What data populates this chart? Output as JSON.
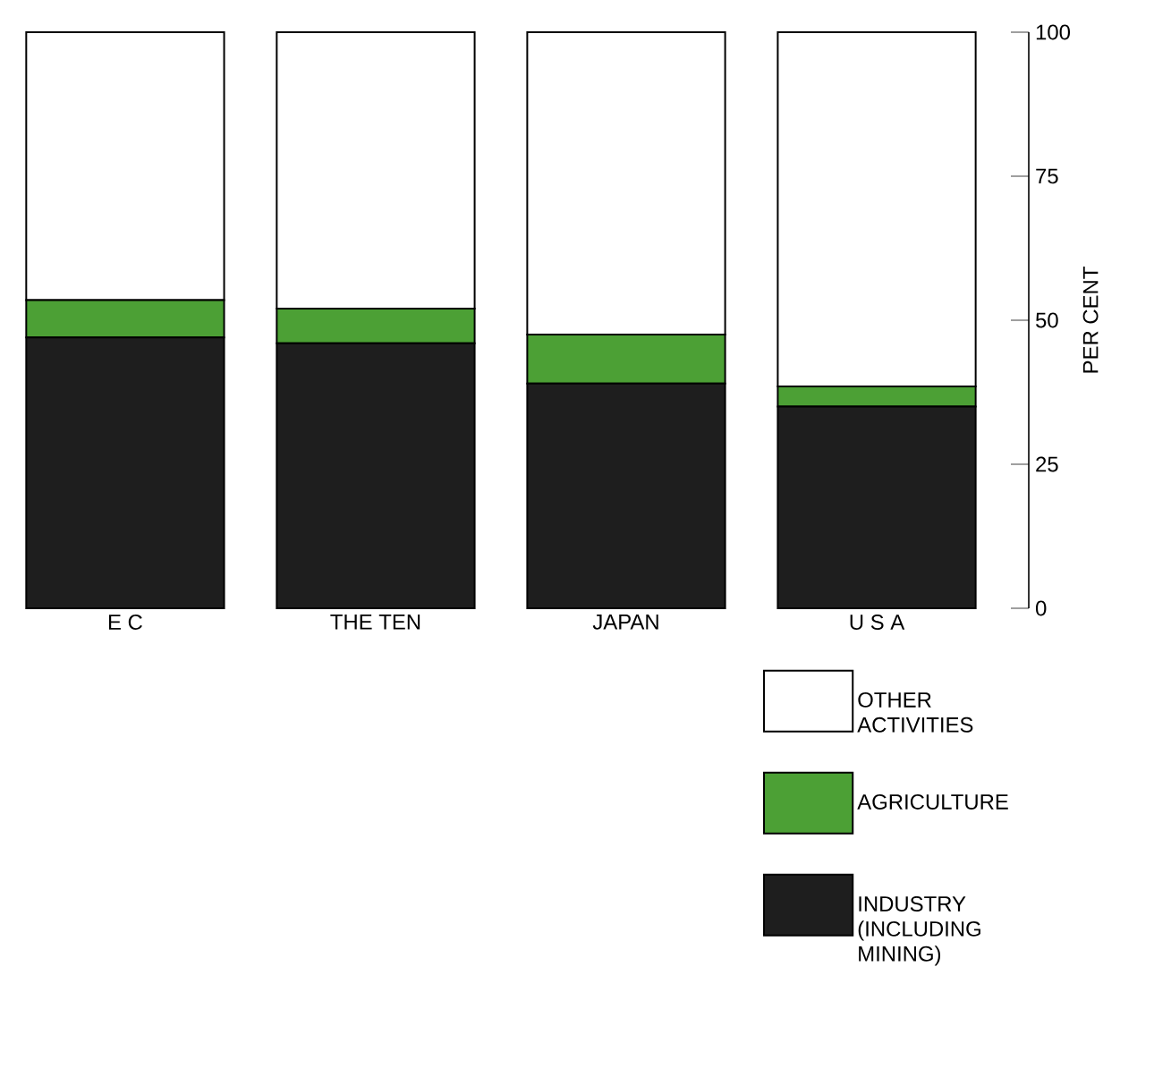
{
  "chart_data": {
    "type": "bar",
    "stacked": true,
    "ylabel": "PER CENT",
    "categories": [
      "E C",
      "THE TEN",
      "JAPAN",
      "U S A"
    ],
    "series": [
      {
        "name": "INDUSTRY (INCLUDING MINING)",
        "color": "#1e1e1e",
        "values": [
          47,
          46,
          39,
          35
        ]
      },
      {
        "name": "AGRICULTURE",
        "color": "#4ca035",
        "values": [
          6.5,
          6,
          8.5,
          3.5
        ]
      },
      {
        "name": "OTHER ACTIVITIES",
        "color": "#ffffff",
        "values": [
          46.5,
          48,
          52.5,
          61.5
        ]
      }
    ],
    "ylim": [
      0,
      100
    ],
    "yticks": [
      0,
      25,
      50,
      75,
      100
    ],
    "legend": "bottom right"
  }
}
